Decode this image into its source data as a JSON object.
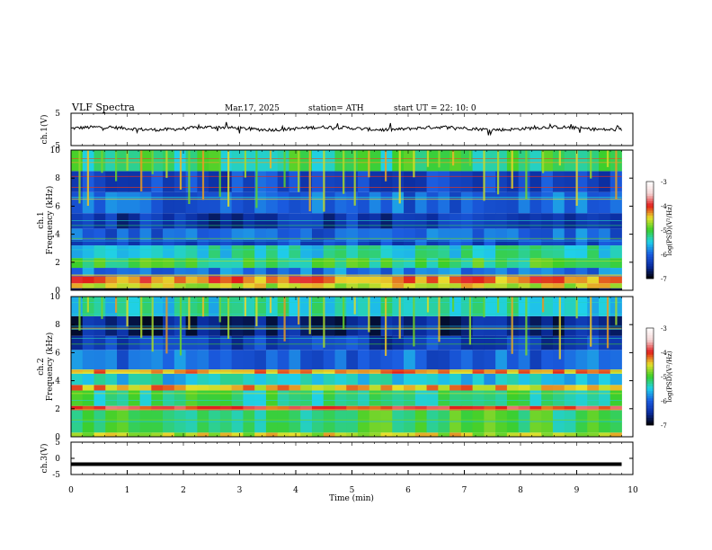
{
  "header": {
    "title": "VLF  Spectra",
    "date": "Mar.17, 2025",
    "station": "station= ATH",
    "start_ut": "start  UT  =    22: 10: 0"
  },
  "chart_data": [
    {
      "type": "line",
      "panel": "ch1-waveform",
      "ylabel": "ch.1(V)",
      "ylim": [
        -5,
        5
      ],
      "y_ticks": [
        "5",
        "-5"
      ],
      "x_range_min": [
        0,
        9.8
      ],
      "mean_level_v": 0.3,
      "amplitude_v": 1.0,
      "color": "#000000"
    },
    {
      "type": "heatmap",
      "panel": "ch1-spectrogram",
      "ylabel": "ch.1\nFrequency (kHz)",
      "ylim_khz": [
        0,
        10
      ],
      "y_ticks": [
        "0",
        "2",
        "4",
        "6",
        "8",
        "10"
      ],
      "xlim_min": [
        0,
        10
      ],
      "data_extent_min": [
        0,
        9.8
      ],
      "colorbar": {
        "label": "log(PSD)(V²/Hz)",
        "range": [
          -7,
          -3
        ],
        "ticks": [
          "-3",
          "-4",
          "-5",
          "-6",
          "-7"
        ],
        "colors": [
          "#000000",
          "#0a2c9f",
          "#1b5ce0",
          "#1fd0ea",
          "#3ccf2a",
          "#e8e02c",
          "#e11b1b",
          "#f4d6d6",
          "#ffffff"
        ]
      },
      "bands_khz": [
        {
          "f_lo": 0.0,
          "f_hi": 0.15,
          "log_psd": -7.0
        },
        {
          "f_lo": 0.15,
          "f_hi": 0.5,
          "log_psd": -4.6
        },
        {
          "f_lo": 0.5,
          "f_hi": 1.0,
          "log_psd": -4.2
        },
        {
          "f_lo": 1.0,
          "f_hi": 1.6,
          "log_psd": -5.9
        },
        {
          "f_lo": 1.6,
          "f_hi": 2.3,
          "log_psd": -5.1
        },
        {
          "f_lo": 2.3,
          "f_hi": 3.2,
          "log_psd": -5.4
        },
        {
          "f_lo": 3.2,
          "f_hi": 3.6,
          "log_psd": -6.2
        },
        {
          "f_lo": 3.6,
          "f_hi": 4.4,
          "log_psd": -6.0
        },
        {
          "f_lo": 4.4,
          "f_hi": 5.5,
          "log_psd": -6.4
        },
        {
          "f_lo": 5.5,
          "f_hi": 7.0,
          "log_psd": -6.0
        },
        {
          "f_lo": 7.0,
          "f_hi": 8.5,
          "log_psd": -6.2
        },
        {
          "f_lo": 8.5,
          "f_hi": 10.0,
          "log_psd": -5.2
        }
      ],
      "burst_times_min": [
        0.15,
        0.3,
        0.55,
        0.8,
        1.0,
        1.25,
        1.45,
        1.7,
        1.95,
        2.1,
        2.35,
        2.65,
        2.8,
        3.1,
        3.3,
        3.55,
        3.8,
        4.05,
        4.25,
        4.5,
        4.85,
        5.05,
        5.3,
        5.6,
        5.85,
        6.1,
        6.35,
        6.55,
        6.8,
        7.1,
        7.35,
        7.6,
        7.85,
        8.1,
        8.4,
        8.7,
        9.0,
        9.25,
        9.55,
        9.7
      ]
    },
    {
      "type": "heatmap",
      "panel": "ch2-spectrogram",
      "ylabel": "ch.2\nFrequency (kHz)",
      "ylim_khz": [
        0,
        10
      ],
      "y_ticks": [
        "0",
        "2",
        "4",
        "6",
        "8",
        "10"
      ],
      "xlim_min": [
        0,
        10
      ],
      "data_extent_min": [
        0,
        9.8
      ],
      "colorbar": {
        "label": "log(PSD)(V²/Hz)",
        "range": [
          -7,
          -3
        ],
        "ticks": [
          "-3",
          "-4",
          "-5",
          "-6",
          "-7"
        ],
        "colors": [
          "#000000",
          "#0a2c9f",
          "#1b5ce0",
          "#1fd0ea",
          "#3ccf2a",
          "#e8e02c",
          "#e11b1b",
          "#f4d6d6",
          "#ffffff"
        ]
      },
      "bands_khz": [
        {
          "f_lo": 0.0,
          "f_hi": 0.3,
          "log_psd": -4.6
        },
        {
          "f_lo": 0.3,
          "f_hi": 1.9,
          "log_psd": -5.1
        },
        {
          "f_lo": 1.9,
          "f_hi": 2.2,
          "log_psd": -4.0
        },
        {
          "f_lo": 2.2,
          "f_hi": 3.3,
          "log_psd": -5.2
        },
        {
          "f_lo": 3.3,
          "f_hi": 3.7,
          "log_psd": -4.4
        },
        {
          "f_lo": 3.7,
          "f_hi": 4.5,
          "log_psd": -5.5
        },
        {
          "f_lo": 4.5,
          "f_hi": 4.8,
          "log_psd": -4.3
        },
        {
          "f_lo": 4.8,
          "f_hi": 6.2,
          "log_psd": -6.0
        },
        {
          "f_lo": 6.2,
          "f_hi": 7.2,
          "log_psd": -6.3
        },
        {
          "f_lo": 7.2,
          "f_hi": 8.6,
          "log_psd": -6.6
        },
        {
          "f_lo": 8.6,
          "f_hi": 10.0,
          "log_psd": -5.4
        }
      ],
      "burst_times_min": [
        0.15,
        0.3,
        0.55,
        0.8,
        1.0,
        1.25,
        1.45,
        1.7,
        1.95,
        2.1,
        2.35,
        2.65,
        2.8,
        3.1,
        3.3,
        3.55,
        3.8,
        4.05,
        4.25,
        4.5,
        4.85,
        5.05,
        5.3,
        5.6,
        5.85,
        6.1,
        6.35,
        6.55,
        6.8,
        7.1,
        7.35,
        7.6,
        7.85,
        8.1,
        8.4,
        8.7,
        9.0,
        9.25,
        9.55,
        9.7
      ]
    },
    {
      "type": "line",
      "panel": "ch3-waveform",
      "ylabel": "ch.3(V)",
      "ylim": [
        -5,
        5
      ],
      "y_ticks": [
        "5",
        "0",
        "-5"
      ],
      "x_range_min": [
        0,
        9.8
      ],
      "mean_level_v": -1.8,
      "amplitude_v": 0.0,
      "color": "#000000"
    }
  ],
  "x_axis": {
    "xlabel": "Time  (min)",
    "xlim": [
      0,
      10
    ],
    "ticks": [
      "0",
      "1",
      "2",
      "3",
      "4",
      "5",
      "6",
      "7",
      "8",
      "9",
      "10"
    ]
  }
}
